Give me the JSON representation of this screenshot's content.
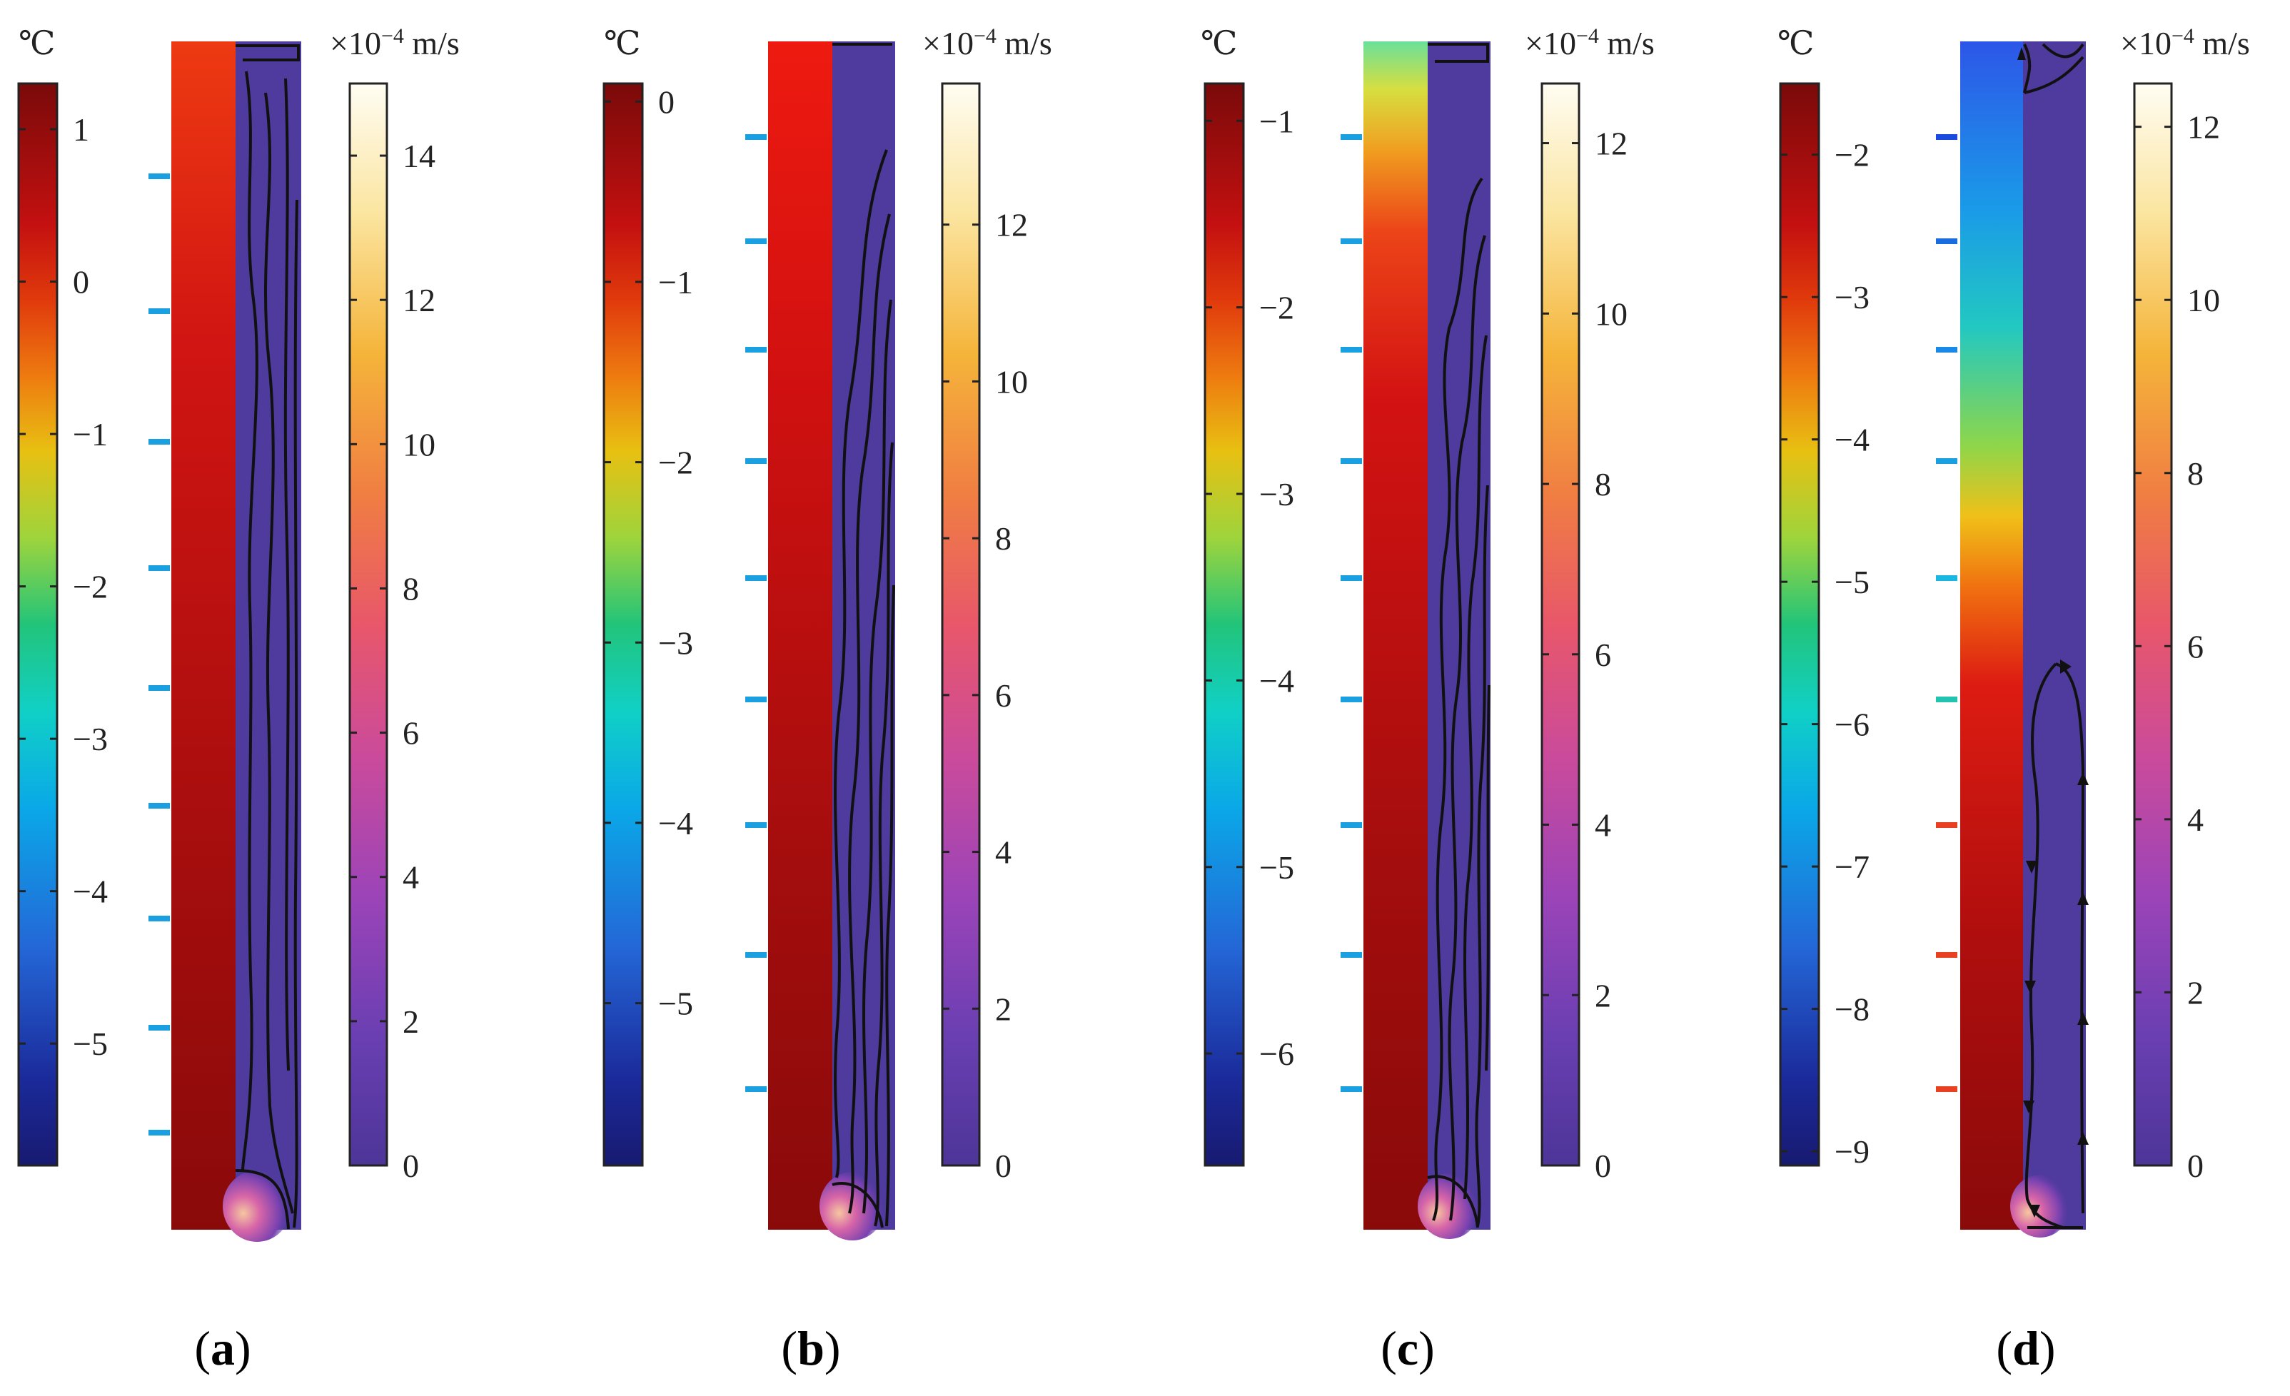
{
  "figure": {
    "panels": [
      {
        "id": "a",
        "caption_letter": "a",
        "temperature_scale": {
          "unit": "℃",
          "range": [
            -5.8,
            1.3
          ],
          "ticks": [
            {
              "label": "1",
              "value": 1
            },
            {
              "label": "0",
              "value": 0
            },
            {
              "label": "−1",
              "value": -1
            },
            {
              "label": "−2",
              "value": -2
            },
            {
              "label": "−3",
              "value": -3
            },
            {
              "label": "−4",
              "value": -4
            },
            {
              "label": "−5",
              "value": -5
            }
          ]
        },
        "velocity_scale": {
          "unit_prefix": "×10",
          "unit_exponent": "−4",
          "unit_suffix": " m/s",
          "range": [
            0,
            15
          ],
          "ticks": [
            {
              "label": "14",
              "value": 14
            },
            {
              "label": "12",
              "value": 12
            },
            {
              "label": "10",
              "value": 10
            },
            {
              "label": "8",
              "value": 8
            },
            {
              "label": "6",
              "value": 6
            },
            {
              "label": "4",
              "value": 4
            },
            {
              "label": "2",
              "value": 2
            },
            {
              "label": "0",
              "value": 0
            }
          ]
        }
      },
      {
        "id": "b",
        "caption_letter": "b",
        "temperature_scale": {
          "unit": "℃",
          "range": [
            -5.9,
            0.1
          ],
          "ticks": [
            {
              "label": "0",
              "value": 0
            },
            {
              "label": "−1",
              "value": -1
            },
            {
              "label": "−2",
              "value": -2
            },
            {
              "label": "−3",
              "value": -3
            },
            {
              "label": "−4",
              "value": -4
            },
            {
              "label": "−5",
              "value": -5
            }
          ]
        },
        "velocity_scale": {
          "unit_prefix": "×10",
          "unit_exponent": "−4",
          "unit_suffix": " m/s",
          "range": [
            0,
            13.8
          ],
          "ticks": [
            {
              "label": "12",
              "value": 12
            },
            {
              "label": "10",
              "value": 10
            },
            {
              "label": "8",
              "value": 8
            },
            {
              "label": "6",
              "value": 6
            },
            {
              "label": "4",
              "value": 4
            },
            {
              "label": "2",
              "value": 2
            },
            {
              "label": "0",
              "value": 0
            }
          ]
        }
      },
      {
        "id": "c",
        "caption_letter": "c",
        "temperature_scale": {
          "unit": "℃",
          "range": [
            -6.6,
            -0.8
          ],
          "ticks": [
            {
              "label": "−1",
              "value": -1
            },
            {
              "label": "−2",
              "value": -2
            },
            {
              "label": "−3",
              "value": -3
            },
            {
              "label": "−4",
              "value": -4
            },
            {
              "label": "−5",
              "value": -5
            },
            {
              "label": "−6",
              "value": -6
            }
          ]
        },
        "velocity_scale": {
          "unit_prefix": "×10",
          "unit_exponent": "−4",
          "unit_suffix": " m/s",
          "range": [
            0,
            12.7
          ],
          "ticks": [
            {
              "label": "12",
              "value": 12
            },
            {
              "label": "10",
              "value": 10
            },
            {
              "label": "8",
              "value": 8
            },
            {
              "label": "6",
              "value": 6
            },
            {
              "label": "4",
              "value": 4
            },
            {
              "label": "2",
              "value": 2
            },
            {
              "label": "0",
              "value": 0
            }
          ]
        }
      },
      {
        "id": "d",
        "caption_letter": "d",
        "temperature_scale": {
          "unit": "℃",
          "range": [
            -9.1,
            -1.5
          ],
          "ticks": [
            {
              "label": "−2",
              "value": -2
            },
            {
              "label": "−3",
              "value": -3
            },
            {
              "label": "−4",
              "value": -4
            },
            {
              "label": "−5",
              "value": -5
            },
            {
              "label": "−6",
              "value": -6
            },
            {
              "label": "−7",
              "value": -7
            },
            {
              "label": "−8",
              "value": -8
            },
            {
              "label": "−9",
              "value": -9
            }
          ]
        },
        "velocity_scale": {
          "unit_prefix": "×10",
          "unit_exponent": "−4",
          "unit_suffix": " m/s",
          "range": [
            0,
            12.5
          ],
          "ticks": [
            {
              "label": "12",
              "value": 12
            },
            {
              "label": "10",
              "value": 10
            },
            {
              "label": "8",
              "value": 8
            },
            {
              "label": "6",
              "value": 6
            },
            {
              "label": "4",
              "value": 4
            },
            {
              "label": "2",
              "value": 2
            },
            {
              "label": "0",
              "value": 0
            }
          ]
        }
      }
    ],
    "colors": {
      "temp_top": "#7a0a0a",
      "temp_stops": [
        "#7a0a0a",
        "#cc1111",
        "#e84a0c",
        "#f08a10",
        "#e8c812",
        "#b6d838",
        "#22c47a",
        "#10d0c6",
        "#0aa8e8",
        "#2466d6",
        "#1b2a9a",
        "#181a70"
      ],
      "velocity_stops": [
        "#fffdf3",
        "#fbe5a0",
        "#f5b43a",
        "#f07e42",
        "#e8576a",
        "#cb4b9a",
        "#9c44b8",
        "#6a3fb2",
        "#4d3598"
      ],
      "flow_region": "#4f3a9e",
      "streamline": "#111111"
    }
  }
}
